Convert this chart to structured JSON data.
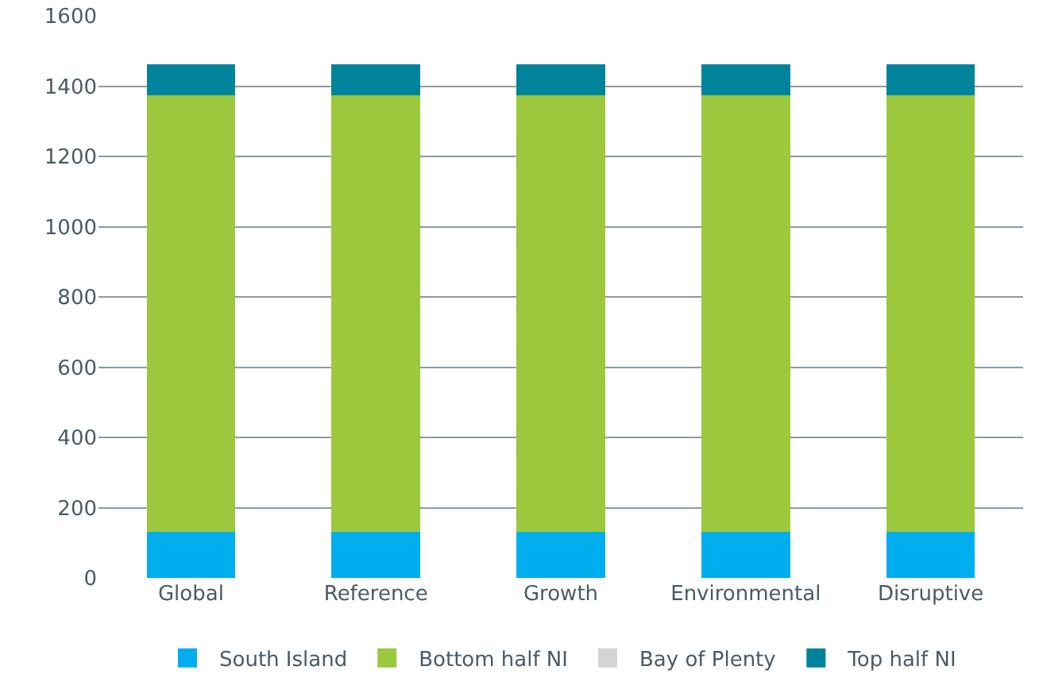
{
  "chart_data": {
    "type": "bar",
    "stacked": true,
    "categories": [
      "Global",
      "Reference",
      "Growth",
      "Environmental",
      "Disruptive"
    ],
    "series": [
      {
        "name": "South Island",
        "color": "#00aeef",
        "values": [
          130,
          130,
          130,
          130,
          130
        ]
      },
      {
        "name": "Bottom half NI",
        "color": "#9bc83c",
        "values": [
          1245,
          1245,
          1245,
          1245,
          1245
        ]
      },
      {
        "name": "Bay of Plenty",
        "color": "#d4d4d4",
        "values": [
          0,
          0,
          0,
          0,
          0
        ]
      },
      {
        "name": "Top half NI",
        "color": "#00849b",
        "values": [
          87,
          87,
          87,
          87,
          87
        ]
      }
    ],
    "ylim": [
      0,
      1600
    ],
    "yticks": [
      0,
      200,
      400,
      600,
      800,
      1000,
      1200,
      1400,
      1600
    ],
    "grid": "y",
    "legend": "bottom"
  }
}
